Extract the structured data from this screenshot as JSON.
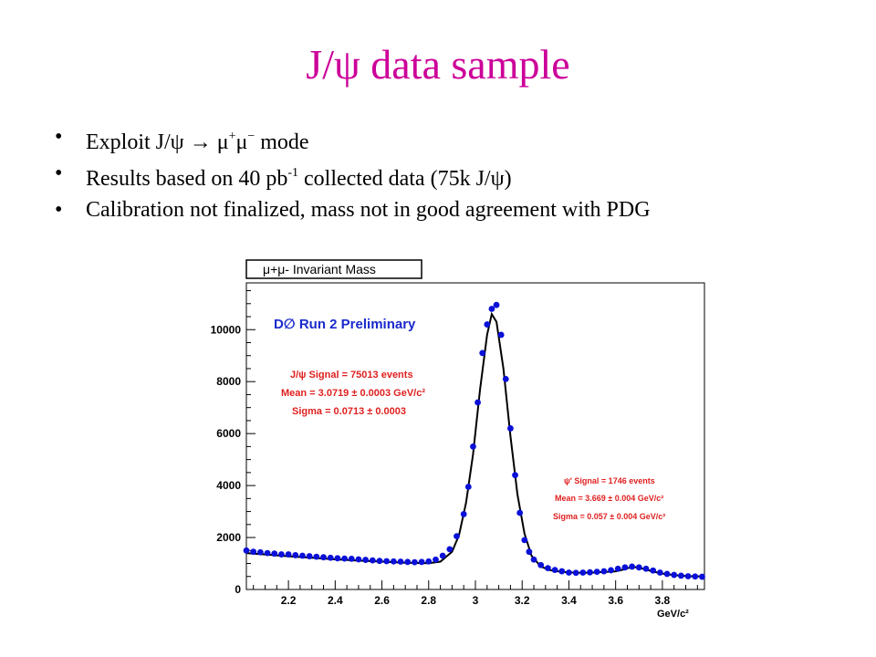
{
  "slide": {
    "title": "J/ψ data sample",
    "bullets": [
      {
        "parts": [
          "Exploit J/ψ ",
          "→",
          " μ",
          "+",
          "μ",
          "−",
          " mode"
        ]
      },
      {
        "parts": [
          "Results based on 40 pb",
          "-1",
          " collected data (75k J/ψ)"
        ]
      },
      {
        "parts": [
          "Calibration not finalized, mass not in good agreement with PDG"
        ]
      }
    ]
  },
  "chart_data": {
    "type": "scatter",
    "title": "μ+μ- Invariant Mass",
    "xlabel": "GeV/c²",
    "ylabel": "",
    "xlim": [
      2.02,
      3.98
    ],
    "ylim": [
      0,
      11800
    ],
    "xticks": [
      "2.2",
      "2.4",
      "2.6",
      "2.8",
      "3",
      "3.2",
      "3.4",
      "3.6",
      "3.8"
    ],
    "yticks": [
      "0",
      "2000",
      "4000",
      "6000",
      "8000",
      "10000"
    ],
    "experiment_label": "D∅ Run 2 Preliminary",
    "annotations": {
      "jpsi": [
        "J/ψ Signal = 75013 events",
        "Mean = 3.0719 ± 0.0003 GeV/c²",
        "Sigma = 0.0713 ± 0.0003"
      ],
      "psiprime": [
        "ψ' Signal = 1746 events",
        "Mean = 3.669  ± 0.004 GeV/c²",
        "Sigma = 0.057  ± 0.004 GeV/c²"
      ]
    },
    "series": [
      {
        "kind": "points",
        "color": "#0a10d8",
        "x": [
          2.02,
          2.05,
          2.08,
          2.11,
          2.14,
          2.17,
          2.2,
          2.23,
          2.26,
          2.29,
          2.32,
          2.35,
          2.38,
          2.41,
          2.44,
          2.47,
          2.5,
          2.53,
          2.56,
          2.59,
          2.62,
          2.65,
          2.68,
          2.71,
          2.74,
          2.77,
          2.8,
          2.83,
          2.86,
          2.89,
          2.92,
          2.95,
          2.97,
          2.99,
          3.01,
          3.03,
          3.05,
          3.07,
          3.09,
          3.11,
          3.13,
          3.15,
          3.17,
          3.19,
          3.21,
          3.23,
          3.25,
          3.28,
          3.31,
          3.34,
          3.37,
          3.4,
          3.43,
          3.46,
          3.49,
          3.52,
          3.55,
          3.58,
          3.61,
          3.64,
          3.67,
          3.7,
          3.73,
          3.76,
          3.79,
          3.82,
          3.85,
          3.88,
          3.91,
          3.94,
          3.97
        ],
        "y": [
          1500,
          1450,
          1430,
          1400,
          1380,
          1350,
          1350,
          1320,
          1300,
          1280,
          1260,
          1240,
          1220,
          1200,
          1190,
          1180,
          1160,
          1140,
          1120,
          1100,
          1090,
          1080,
          1070,
          1060,
          1050,
          1060,
          1080,
          1150,
          1300,
          1550,
          2050,
          2900,
          3950,
          5500,
          7200,
          9100,
          10200,
          10800,
          10950,
          9800,
          8100,
          6200,
          4400,
          2950,
          1900,
          1450,
          1150,
          940,
          820,
          750,
          700,
          650,
          640,
          650,
          660,
          680,
          700,
          740,
          800,
          850,
          880,
          850,
          800,
          730,
          650,
          600,
          560,
          530,
          510,
          500,
          490
        ]
      },
      {
        "kind": "fit",
        "color": "#000000",
        "x": [
          2.02,
          2.1,
          2.2,
          2.3,
          2.4,
          2.5,
          2.6,
          2.7,
          2.8,
          2.85,
          2.9,
          2.93,
          2.96,
          2.99,
          3.02,
          3.05,
          3.07,
          3.09,
          3.12,
          3.15,
          3.18,
          3.21,
          3.24,
          3.28,
          3.32,
          3.36,
          3.4,
          3.45,
          3.5,
          3.55,
          3.6,
          3.63,
          3.66,
          3.69,
          3.72,
          3.76,
          3.8,
          3.85,
          3.9,
          3.97
        ],
        "y": [
          1400,
          1350,
          1280,
          1220,
          1160,
          1110,
          1070,
          1030,
          1010,
          1070,
          1450,
          2100,
          3350,
          5200,
          7700,
          9800,
          10600,
          10300,
          8500,
          5900,
          3650,
          2150,
          1300,
          880,
          740,
          690,
          660,
          640,
          650,
          670,
          700,
          760,
          840,
          860,
          790,
          690,
          610,
          550,
          520,
          500
        ]
      }
    ]
  }
}
